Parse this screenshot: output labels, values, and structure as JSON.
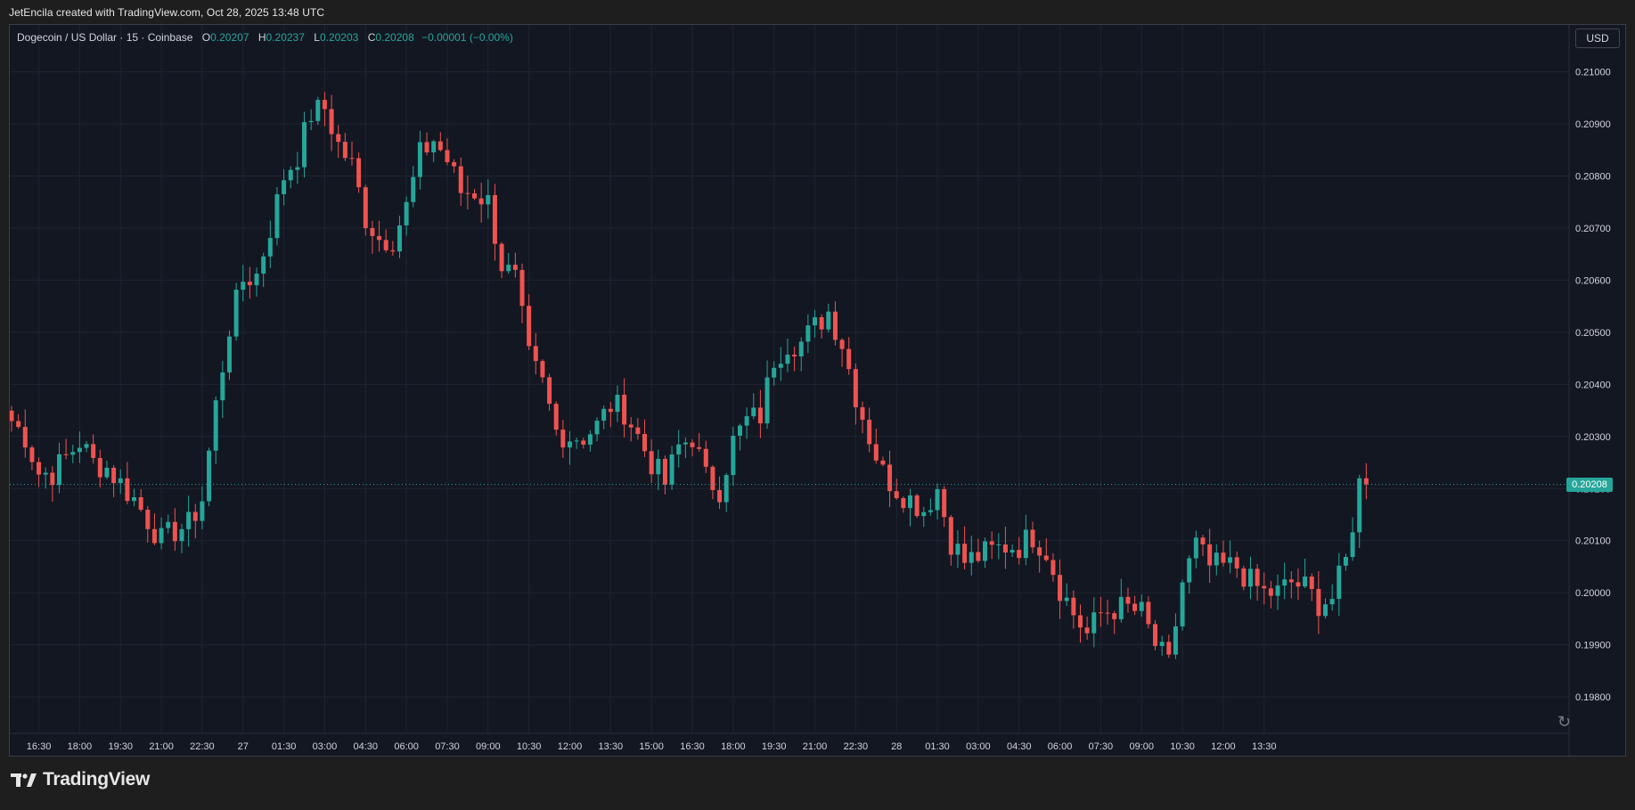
{
  "caption": "JetEncila created with TradingView.com, Oct 28, 2025 13:48 UTC",
  "legend": {
    "symbol": "Dogecoin / US Dollar · 15 · Coinbase",
    "open_key": "O",
    "open": "0.20207",
    "high_key": "H",
    "high": "0.20237",
    "low_key": "L",
    "low": "0.20203",
    "close_key": "C",
    "close": "0.20208",
    "change": "−0.00001 (−0.00%)"
  },
  "currency_button": "USD",
  "last_price_label": "0.20208",
  "brand": {
    "name": "TradingView",
    "logo_icon": "tradingview-logo-icon"
  },
  "replay_icon": "replay-icon",
  "colors": {
    "background": "#131722",
    "up": "#26a69a",
    "down": "#ef5350",
    "grid": "#1f2430",
    "axis_text": "#d1d4dc",
    "last_price": "#26a69a"
  },
  "chart_data": {
    "type": "candlestick",
    "title": "Dogecoin / US Dollar · 15 · Coinbase",
    "interval_minutes": 15,
    "y_ticks": [
      "0.19800",
      "0.19900",
      "0.20000",
      "0.20100",
      "0.20200",
      "0.20300",
      "0.20400",
      "0.20500",
      "0.20600",
      "0.20700",
      "0.20800",
      "0.20900",
      "0.21000"
    ],
    "x_ticks": [
      "16:30",
      "18:00",
      "19:30",
      "21:00",
      "22:30",
      "27",
      "01:30",
      "03:00",
      "04:30",
      "06:00",
      "07:30",
      "09:00",
      "10:30",
      "12:00",
      "13:30",
      "15:00",
      "16:30",
      "18:00",
      "19:30",
      "21:00",
      "22:30",
      "28",
      "01:30",
      "03:00",
      "04:30",
      "06:00",
      "07:30",
      "09:00",
      "10:30",
      "12:00",
      "13:30"
    ],
    "ylim": [
      0.1973,
      0.2109
    ],
    "last_price": 0.20208,
    "grid": true,
    "key_points": [
      [
        0,
        0.2033
      ],
      [
        2,
        0.203
      ],
      [
        4,
        0.2023
      ],
      [
        6,
        0.2023
      ],
      [
        8,
        0.2026
      ],
      [
        10,
        0.2029
      ],
      [
        12,
        0.2025
      ],
      [
        14,
        0.2024
      ],
      [
        16,
        0.2021
      ],
      [
        18,
        0.2018
      ],
      [
        20,
        0.2014
      ],
      [
        22,
        0.201
      ],
      [
        24,
        0.2012
      ],
      [
        26,
        0.2013
      ],
      [
        28,
        0.2018
      ],
      [
        30,
        0.2036
      ],
      [
        32,
        0.2051
      ],
      [
        34,
        0.206
      ],
      [
        36,
        0.2061
      ],
      [
        38,
        0.207
      ],
      [
        40,
        0.208
      ],
      [
        42,
        0.2084
      ],
      [
        44,
        0.2092
      ],
      [
        46,
        0.2093
      ],
      [
        48,
        0.2086
      ],
      [
        50,
        0.2082
      ],
      [
        52,
        0.2072
      ],
      [
        54,
        0.2068
      ],
      [
        56,
        0.2068
      ],
      [
        58,
        0.2074
      ],
      [
        60,
        0.2084
      ],
      [
        62,
        0.2087
      ],
      [
        64,
        0.2083
      ],
      [
        66,
        0.2077
      ],
      [
        68,
        0.2077
      ],
      [
        70,
        0.2075
      ],
      [
        72,
        0.2063
      ],
      [
        74,
        0.206
      ],
      [
        76,
        0.2045
      ],
      [
        78,
        0.204
      ],
      [
        80,
        0.2031
      ],
      [
        82,
        0.203
      ],
      [
        84,
        0.203
      ],
      [
        86,
        0.2032
      ],
      [
        88,
        0.2036
      ],
      [
        90,
        0.2035
      ],
      [
        92,
        0.203
      ],
      [
        94,
        0.2025
      ],
      [
        96,
        0.2021
      ],
      [
        98,
        0.2028
      ],
      [
        100,
        0.203
      ],
      [
        102,
        0.2022
      ],
      [
        104,
        0.202
      ],
      [
        106,
        0.2029
      ],
      [
        108,
        0.2033
      ],
      [
        110,
        0.2034
      ],
      [
        112,
        0.2045
      ],
      [
        114,
        0.2048
      ],
      [
        116,
        0.2048
      ],
      [
        118,
        0.2051
      ],
      [
        120,
        0.2054
      ],
      [
        122,
        0.2048
      ],
      [
        124,
        0.2038
      ],
      [
        126,
        0.203
      ],
      [
        128,
        0.2023
      ],
      [
        130,
        0.202
      ],
      [
        132,
        0.2018
      ],
      [
        134,
        0.2016
      ],
      [
        136,
        0.202
      ],
      [
        138,
        0.201
      ],
      [
        140,
        0.2006
      ],
      [
        142,
        0.2007
      ],
      [
        144,
        0.2008
      ],
      [
        146,
        0.2009
      ],
      [
        148,
        0.2009
      ],
      [
        150,
        0.2011
      ],
      [
        152,
        0.2008
      ],
      [
        154,
        0.2001
      ],
      [
        156,
        0.1996
      ],
      [
        158,
        0.1992
      ],
      [
        160,
        0.1996
      ],
      [
        162,
        0.1997
      ],
      [
        164,
        0.1997
      ],
      [
        166,
        0.1996
      ],
      [
        168,
        0.199
      ],
      [
        170,
        0.1986
      ],
      [
        172,
        0.2002
      ],
      [
        174,
        0.2009
      ],
      [
        176,
        0.2005
      ],
      [
        178,
        0.2005
      ],
      [
        180,
        0.2005
      ],
      [
        182,
        0.2002
      ],
      [
        184,
        0.2
      ],
      [
        186,
        0.2
      ],
      [
        188,
        0.2002
      ],
      [
        190,
        0.2001
      ],
      [
        192,
        0.1998
      ],
      [
        194,
        0.1999
      ],
      [
        196,
        0.2006
      ],
      [
        198,
        0.2021
      ],
      [
        199,
        0.2021
      ]
    ]
  }
}
